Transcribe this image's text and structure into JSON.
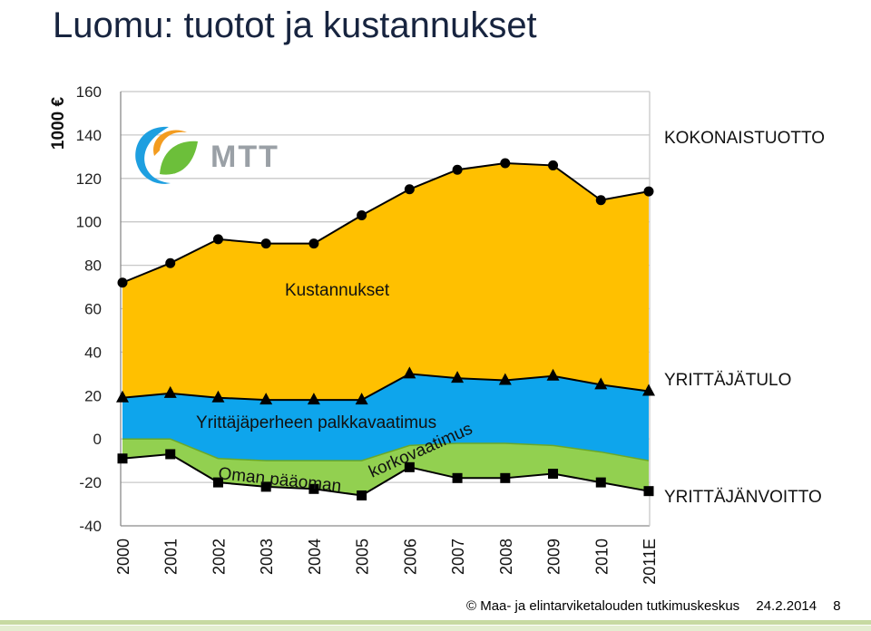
{
  "title": "Luomu: tuotot ja kustannukset",
  "footer": {
    "copyright": "© Maa- ja elintarviketalouden tutkimuskeskus",
    "date": "24.2.2014",
    "page": "8"
  },
  "logo": {
    "text": "MTT"
  },
  "chart_data": {
    "type": "area",
    "ylabel": "1000 €",
    "ylim": [
      -40,
      160
    ],
    "yticks": [
      "160",
      "140",
      "120",
      "100",
      "80",
      "60",
      "40",
      "20",
      "0",
      "-20",
      "-40"
    ],
    "categories": [
      "2000",
      "2001",
      "2002",
      "2003",
      "2004",
      "2005",
      "2006",
      "2007",
      "2008",
      "2009",
      "2010",
      "2011E"
    ],
    "series": [
      {
        "name": "KOKONAISTUOTTO",
        "marker": "circle",
        "color": "#000000",
        "values": [
          72,
          81,
          92,
          90,
          90,
          103,
          115,
          124,
          127,
          126,
          110,
          114
        ]
      },
      {
        "name": "YRITTÄJÄTULO",
        "marker": "triangle",
        "color": "#000000",
        "values": [
          19,
          21,
          19,
          18,
          18,
          18,
          30,
          28,
          27,
          29,
          25,
          22
        ]
      },
      {
        "name": "YRITTÄJÄNVOITTO",
        "marker": "square",
        "color": "#000000",
        "values": [
          -9,
          -7,
          -20,
          -22,
          -23,
          -26,
          -13,
          -18,
          -18,
          -16,
          -20,
          -24
        ]
      }
    ],
    "band_upper_zero": [
      0,
      0,
      -9,
      -10,
      -10,
      -10,
      -3,
      -2,
      -2,
      -3,
      -6,
      -10
    ],
    "band_labels": {
      "cost": "Kustannukset",
      "wage": "Yrittäjäperheen palkkavaatimus",
      "capital": "Oman pääoman",
      "interest": "korkovaatimus"
    },
    "colors": {
      "cost": "#ffc000",
      "wage": "#0ea5ec",
      "capital": "#92d050",
      "capital_dark": "#6aa828"
    }
  }
}
